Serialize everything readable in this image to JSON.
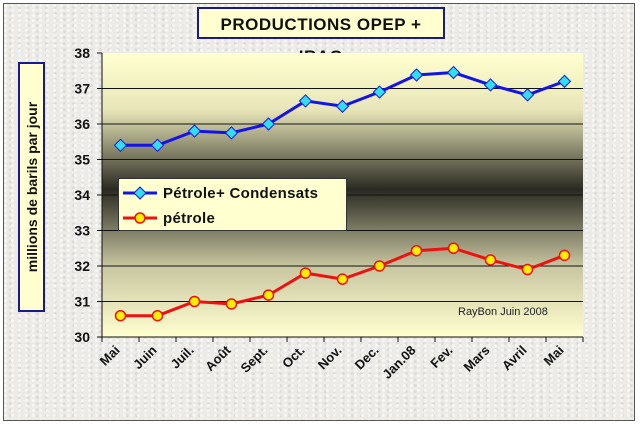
{
  "chart_data": {
    "type": "line",
    "title": "PRODUCTIONS OPEP  + IRAQ",
    "ylabel": "millions de barils par jour",
    "xlabel": "",
    "ylim": [
      30,
      38
    ],
    "yticks": [
      "30",
      "31",
      "32",
      "33",
      "34",
      "35",
      "36",
      "37",
      "38"
    ],
    "categories": [
      "Mai",
      "Juin",
      "Juil.",
      "Août",
      "Sept.",
      "Oct.",
      "Nov.",
      "Dec.",
      "Jan.08",
      "Fev.",
      "Mars",
      "Avril",
      "Mai"
    ],
    "series": [
      {
        "name": "Pétrole+ Condensats",
        "color": "#1414e6",
        "marker": "diamond",
        "marker_color": "#33ddee",
        "values": [
          35.4,
          35.4,
          35.8,
          35.75,
          36.0,
          36.65,
          36.5,
          36.9,
          37.38,
          37.45,
          37.1,
          36.82,
          37.2
        ]
      },
      {
        "name": "pétrole",
        "color": "#ee1111",
        "marker": "circle",
        "marker_color": "#ffee00",
        "values": [
          30.6,
          30.6,
          31.0,
          30.93,
          31.18,
          31.8,
          31.63,
          32.0,
          32.43,
          32.5,
          32.17,
          31.9,
          32.3
        ]
      }
    ],
    "legend_position": "center-left",
    "grid": true,
    "annotation": "RayBon Juin 2008"
  }
}
